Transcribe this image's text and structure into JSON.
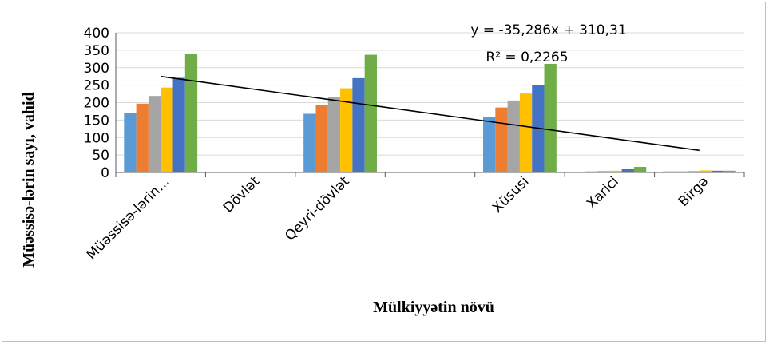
{
  "chart_data": {
    "type": "bar",
    "title": "",
    "xlabel": "Mülkiyyətin növü",
    "ylabel": "Müəssisə-lərin sayı, vahid",
    "ylim": [
      0,
      400
    ],
    "yticks": [
      "0",
      "50",
      "100",
      "150",
      "200",
      "250",
      "300",
      "350",
      "400"
    ],
    "categories": [
      "Müəssisə-lərin…",
      "Dövlət",
      "Qeyri-dövlət",
      "",
      "Xüsusi",
      "Xarici",
      "Birgə"
    ],
    "series": [
      {
        "color": "#5b9bd5",
        "values": [
          170,
          0,
          168,
          0,
          160,
          2,
          3
        ]
      },
      {
        "color": "#ed7d31",
        "values": [
          197,
          0,
          193,
          0,
          186,
          3,
          3
        ]
      },
      {
        "color": "#a5a5a5",
        "values": [
          219,
          0,
          215,
          0,
          206,
          4,
          4
        ]
      },
      {
        "color": "#ffc000",
        "values": [
          243,
          0,
          241,
          0,
          226,
          5,
          6
        ]
      },
      {
        "color": "#4472c4",
        "values": [
          271,
          0,
          270,
          0,
          251,
          10,
          5
        ]
      },
      {
        "color": "#70ad47",
        "values": [
          340,
          0,
          337,
          0,
          311,
          16,
          5
        ]
      }
    ],
    "trendline": {
      "equation": "y = -35,286x + 310,31",
      "r2": "R² = 0,2265",
      "slope": -35.286,
      "intercept": 310.31,
      "color": "#000000"
    },
    "gridlines": true,
    "legend": "none"
  }
}
